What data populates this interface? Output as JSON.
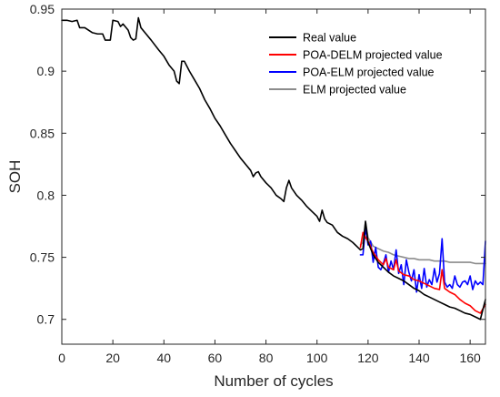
{
  "chart_data": {
    "type": "line",
    "xlabel": "Number of cycles",
    "ylabel": "SOH",
    "xlim": [
      0,
      166
    ],
    "ylim": [
      0.68,
      0.95
    ],
    "x_ticks": [
      0,
      20,
      40,
      60,
      80,
      100,
      120,
      140,
      160
    ],
    "y_ticks": [
      0.7,
      0.75,
      0.8,
      0.85,
      0.9,
      0.95
    ],
    "grid": false,
    "legend_position": "top-right",
    "series": [
      {
        "name": "Real value",
        "color": "#000000",
        "x": [
          0,
          2,
          4,
          6,
          7,
          9,
          12,
          14,
          16,
          17,
          18,
          19,
          20,
          22,
          23,
          24,
          26,
          27,
          28,
          29,
          30,
          31,
          33,
          35,
          38,
          40,
          42,
          44,
          45,
          46,
          47,
          48,
          50,
          52,
          54,
          56,
          58,
          60,
          62,
          64,
          66,
          68,
          70,
          72,
          74,
          75,
          76,
          77,
          78,
          80,
          82,
          84,
          86,
          87,
          88,
          89,
          90,
          92,
          94,
          96,
          98,
          100,
          101,
          102,
          103,
          104,
          106,
          108,
          110,
          112,
          114,
          116,
          117,
          118,
          119,
          120,
          122,
          124,
          126,
          128,
          130,
          132,
          134,
          136,
          138,
          140,
          142,
          144,
          146,
          148,
          150,
          152,
          154,
          156,
          158,
          160,
          162,
          164,
          166
        ],
        "values": [
          0.941,
          0.941,
          0.94,
          0.941,
          0.935,
          0.935,
          0.931,
          0.93,
          0.93,
          0.925,
          0.925,
          0.925,
          0.941,
          0.94,
          0.936,
          0.938,
          0.933,
          0.927,
          0.925,
          0.926,
          0.943,
          0.935,
          0.93,
          0.925,
          0.917,
          0.912,
          0.905,
          0.9,
          0.892,
          0.89,
          0.908,
          0.908,
          0.9,
          0.893,
          0.886,
          0.877,
          0.87,
          0.862,
          0.856,
          0.849,
          0.842,
          0.836,
          0.83,
          0.825,
          0.82,
          0.815,
          0.818,
          0.819,
          0.815,
          0.81,
          0.806,
          0.8,
          0.797,
          0.795,
          0.806,
          0.812,
          0.806,
          0.8,
          0.796,
          0.791,
          0.787,
          0.783,
          0.779,
          0.788,
          0.781,
          0.778,
          0.776,
          0.77,
          0.767,
          0.765,
          0.762,
          0.758,
          0.756,
          0.757,
          0.779,
          0.762,
          0.752,
          0.746,
          0.742,
          0.738,
          0.735,
          0.733,
          0.731,
          0.728,
          0.725,
          0.723,
          0.72,
          0.718,
          0.716,
          0.714,
          0.712,
          0.71,
          0.709,
          0.707,
          0.705,
          0.704,
          0.702,
          0.7,
          0.716
        ]
      },
      {
        "name": "POA-DELM projected value",
        "color": "#ff0000",
        "x": [
          117,
          118,
          119,
          120,
          122,
          124,
          126,
          127,
          128,
          130,
          131,
          132,
          134,
          136,
          138,
          140,
          142,
          144,
          146,
          148,
          149,
          150,
          152,
          154,
          156,
          158,
          160,
          162,
          164,
          166
        ],
        "values": [
          0.758,
          0.77,
          0.766,
          0.763,
          0.754,
          0.748,
          0.744,
          0.749,
          0.742,
          0.74,
          0.748,
          0.739,
          0.736,
          0.735,
          0.732,
          0.731,
          0.729,
          0.727,
          0.725,
          0.724,
          0.74,
          0.725,
          0.722,
          0.72,
          0.716,
          0.713,
          0.711,
          0.707,
          0.705,
          0.712
        ]
      },
      {
        "name": "POA-ELM projected value",
        "color": "#0000ff",
        "x": [
          117,
          118,
          119,
          120,
          121,
          122,
          123,
          124,
          125,
          126,
          127,
          128,
          129,
          130,
          131,
          132,
          133,
          134,
          135,
          136,
          137,
          138,
          139,
          140,
          141,
          142,
          143,
          144,
          145,
          146,
          147,
          148,
          149,
          150,
          151,
          152,
          153,
          154,
          155,
          156,
          157,
          158,
          159,
          160,
          161,
          162,
          163,
          164,
          165,
          166
        ],
        "values": [
          0.752,
          0.752,
          0.774,
          0.76,
          0.763,
          0.746,
          0.758,
          0.742,
          0.74,
          0.745,
          0.752,
          0.738,
          0.747,
          0.74,
          0.756,
          0.737,
          0.744,
          0.728,
          0.748,
          0.738,
          0.731,
          0.74,
          0.722,
          0.736,
          0.725,
          0.741,
          0.726,
          0.732,
          0.728,
          0.741,
          0.73,
          0.737,
          0.765,
          0.73,
          0.726,
          0.728,
          0.725,
          0.735,
          0.728,
          0.726,
          0.73,
          0.731,
          0.728,
          0.735,
          0.724,
          0.731,
          0.728,
          0.73,
          0.728,
          0.763
        ]
      },
      {
        "name": "ELM projected value",
        "color": "#8c8c8c",
        "x": [
          117,
          118,
          119,
          120,
          122,
          124,
          126,
          128,
          130,
          132,
          134,
          136,
          138,
          140,
          142,
          144,
          146,
          148,
          150,
          152,
          154,
          156,
          158,
          160,
          162,
          164,
          166
        ],
        "values": [
          0.76,
          0.762,
          0.779,
          0.766,
          0.759,
          0.757,
          0.755,
          0.754,
          0.752,
          0.751,
          0.75,
          0.749,
          0.749,
          0.748,
          0.748,
          0.748,
          0.747,
          0.747,
          0.747,
          0.746,
          0.746,
          0.746,
          0.746,
          0.746,
          0.745,
          0.745,
          0.745
        ]
      }
    ]
  }
}
